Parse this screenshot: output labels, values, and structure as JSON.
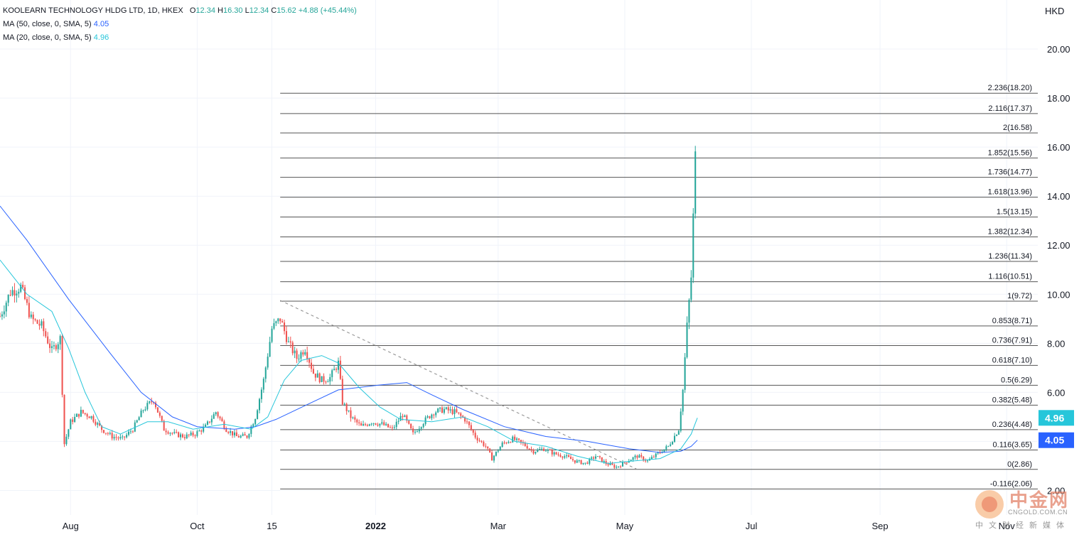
{
  "legend": {
    "symbol": "KOOLEARN TECHNOLOGY HLDG LTD, 1D, HKEX",
    "o_label": "O",
    "o_val": "12.34",
    "h_label": "H",
    "h_val": "16.30",
    "l_label": "L",
    "l_val": "12.34",
    "c_label": "C",
    "c_val": "15.62",
    "change": "+4.88 (+45.44%)",
    "ma50_label": "MA (50, close, 0, SMA, 5)",
    "ma50_val": "4.05",
    "ma20_label": "MA (20, close, 0, SMA, 5)",
    "ma20_val": "4.96"
  },
  "watermark": {
    "logo_text": "中金网",
    "sub": "CNGOLD.COM.CN",
    "cn": "中文财经新媒体"
  },
  "colors": {
    "up": "#26a69a",
    "down": "#ef5350",
    "ma50": "#2962ff",
    "ma20": "#26c6da",
    "fib": "#555555",
    "grid": "#f0f3fa"
  },
  "chart_data": {
    "type": "candlestick",
    "y_unit": "HKD",
    "ylim": [
      1.0,
      22.0
    ],
    "y_ticks": [
      "2.00",
      "4.00",
      "6.00",
      "8.00",
      "10.00",
      "12.00",
      "14.00",
      "16.00",
      "18.00",
      "20.00"
    ],
    "x_ticks": [
      {
        "label": "Aug",
        "day": 21
      },
      {
        "label": "Oct",
        "day": 82
      },
      {
        "label": "15",
        "day": 118
      },
      {
        "label": "2022",
        "day": 168,
        "bold": true
      },
      {
        "label": "Mar",
        "day": 227
      },
      {
        "label": "May",
        "day": 288
      },
      {
        "label": "Jul",
        "day": 349
      },
      {
        "label": "Sep",
        "day": 411
      },
      {
        "label": "Nov",
        "day": 472
      }
    ],
    "x_range_days": [
      -13,
      487
    ],
    "fib_levels": [
      {
        "label": "2.236(18.20)",
        "value": 18.2
      },
      {
        "label": "2.116(17.37)",
        "value": 17.37
      },
      {
        "label": "2(16.58)",
        "value": 16.58
      },
      {
        "label": "1.852(15.56)",
        "value": 15.56
      },
      {
        "label": "1.736(14.77)",
        "value": 14.77
      },
      {
        "label": "1.618(13.96)",
        "value": 13.96
      },
      {
        "label": "1.5(13.15)",
        "value": 13.15
      },
      {
        "label": "1.382(12.34)",
        "value": 12.34
      },
      {
        "label": "1.236(11.34)",
        "value": 11.34
      },
      {
        "label": "1.116(10.51)",
        "value": 10.51
      },
      {
        "label": "1(9.72)",
        "value": 9.72
      },
      {
        "label": "0.853(8.71)",
        "value": 8.71
      },
      {
        "label": "0.736(7.91)",
        "value": 7.91
      },
      {
        "label": "0.618(7.10)",
        "value": 7.1
      },
      {
        "label": "0.5(6.29)",
        "value": 6.29
      },
      {
        "label": "0.382(5.48)",
        "value": 5.48
      },
      {
        "label": "0.236(4.48)",
        "value": 4.48
      },
      {
        "label": "0.116(3.65)",
        "value": 3.65
      },
      {
        "label": "0(2.86)",
        "value": 2.86
      },
      {
        "label": "-0.116(2.06)",
        "value": 2.06
      }
    ],
    "fib_start_day": 122,
    "trendline": {
      "from": [
        122,
        9.75
      ],
      "to": [
        294,
        2.86
      ]
    },
    "closes": [
      {
        "d": -13,
        "c": 9.1
      },
      {
        "d": -8,
        "c": 10.1
      },
      {
        "d": -3,
        "c": 10.3
      },
      {
        "d": 2,
        "c": 9.0
      },
      {
        "d": 7,
        "c": 8.7
      },
      {
        "d": 12,
        "c": 7.7
      },
      {
        "d": 16,
        "c": 8.2
      },
      {
        "d": 18,
        "c": 3.9
      },
      {
        "d": 21,
        "c": 4.8
      },
      {
        "d": 26,
        "c": 5.2
      },
      {
        "d": 31,
        "c": 5.0
      },
      {
        "d": 36,
        "c": 4.5
      },
      {
        "d": 41,
        "c": 4.2
      },
      {
        "d": 46,
        "c": 4.1
      },
      {
        "d": 51,
        "c": 4.5
      },
      {
        "d": 56,
        "c": 5.3
      },
      {
        "d": 61,
        "c": 5.7
      },
      {
        "d": 66,
        "c": 4.5
      },
      {
        "d": 71,
        "c": 4.3
      },
      {
        "d": 76,
        "c": 4.2
      },
      {
        "d": 81,
        "c": 4.3
      },
      {
        "d": 86,
        "c": 4.6
      },
      {
        "d": 91,
        "c": 5.2
      },
      {
        "d": 96,
        "c": 4.5
      },
      {
        "d": 101,
        "c": 4.2
      },
      {
        "d": 106,
        "c": 4.2
      },
      {
        "d": 110,
        "c": 5.0
      },
      {
        "d": 114,
        "c": 6.5
      },
      {
        "d": 118,
        "c": 8.6
      },
      {
        "d": 122,
        "c": 9.0
      },
      {
        "d": 126,
        "c": 8.0
      },
      {
        "d": 130,
        "c": 7.4
      },
      {
        "d": 134,
        "c": 7.8
      },
      {
        "d": 138,
        "c": 6.8
      },
      {
        "d": 142,
        "c": 6.5
      },
      {
        "d": 146,
        "c": 6.6
      },
      {
        "d": 150,
        "c": 7.2
      },
      {
        "d": 152,
        "c": 5.6
      },
      {
        "d": 156,
        "c": 5.0
      },
      {
        "d": 161,
        "c": 4.6
      },
      {
        "d": 166,
        "c": 4.8
      },
      {
        "d": 171,
        "c": 4.7
      },
      {
        "d": 176,
        "c": 4.5
      },
      {
        "d": 181,
        "c": 5.1
      },
      {
        "d": 186,
        "c": 4.3
      },
      {
        "d": 191,
        "c": 4.8
      },
      {
        "d": 196,
        "c": 5.2
      },
      {
        "d": 201,
        "c": 5.3
      },
      {
        "d": 206,
        "c": 5.2
      },
      {
        "d": 211,
        "c": 4.9
      },
      {
        "d": 216,
        "c": 4.2
      },
      {
        "d": 221,
        "c": 3.8
      },
      {
        "d": 224,
        "c": 3.3
      },
      {
        "d": 229,
        "c": 3.9
      },
      {
        "d": 234,
        "c": 4.1
      },
      {
        "d": 239,
        "c": 3.9
      },
      {
        "d": 244,
        "c": 3.6
      },
      {
        "d": 249,
        "c": 3.7
      },
      {
        "d": 254,
        "c": 3.5
      },
      {
        "d": 259,
        "c": 3.4
      },
      {
        "d": 264,
        "c": 3.2
      },
      {
        "d": 269,
        "c": 3.1
      },
      {
        "d": 274,
        "c": 3.4
      },
      {
        "d": 279,
        "c": 3.1
      },
      {
        "d": 284,
        "c": 2.95
      },
      {
        "d": 289,
        "c": 3.2
      },
      {
        "d": 294,
        "c": 3.4
      },
      {
        "d": 299,
        "c": 3.2
      },
      {
        "d": 304,
        "c": 3.5
      },
      {
        "d": 309,
        "c": 3.8
      },
      {
        "d": 314,
        "c": 4.5
      },
      {
        "d": 316,
        "c": 6.1
      },
      {
        "d": 318,
        "c": 8.7
      },
      {
        "d": 320,
        "c": 10.7
      },
      {
        "d": 322,
        "c": 15.62
      }
    ],
    "ma50": [
      {
        "d": -13,
        "v": 13.6
      },
      {
        "d": 0,
        "v": 12.2
      },
      {
        "d": 20,
        "v": 9.8
      },
      {
        "d": 40,
        "v": 7.6
      },
      {
        "d": 55,
        "v": 6.0
      },
      {
        "d": 70,
        "v": 5.0
      },
      {
        "d": 82,
        "v": 4.6
      },
      {
        "d": 100,
        "v": 4.5
      },
      {
        "d": 110,
        "v": 4.6
      },
      {
        "d": 120,
        "v": 4.9
      },
      {
        "d": 135,
        "v": 5.5
      },
      {
        "d": 150,
        "v": 6.1
      },
      {
        "d": 170,
        "v": 6.3
      },
      {
        "d": 183,
        "v": 6.4
      },
      {
        "d": 195,
        "v": 5.9
      },
      {
        "d": 210,
        "v": 5.3
      },
      {
        "d": 230,
        "v": 4.6
      },
      {
        "d": 250,
        "v": 4.2
      },
      {
        "d": 270,
        "v": 4.0
      },
      {
        "d": 290,
        "v": 3.7
      },
      {
        "d": 305,
        "v": 3.55
      },
      {
        "d": 315,
        "v": 3.6
      },
      {
        "d": 320,
        "v": 3.8
      },
      {
        "d": 323,
        "v": 4.05
      }
    ],
    "ma20": [
      {
        "d": -13,
        "v": 11.4
      },
      {
        "d": 0,
        "v": 10.0
      },
      {
        "d": 12,
        "v": 9.3
      },
      {
        "d": 20,
        "v": 7.8
      },
      {
        "d": 28,
        "v": 6.0
      },
      {
        "d": 36,
        "v": 4.6
      },
      {
        "d": 45,
        "v": 4.3
      },
      {
        "d": 58,
        "v": 4.8
      },
      {
        "d": 68,
        "v": 4.8
      },
      {
        "d": 80,
        "v": 4.5
      },
      {
        "d": 95,
        "v": 4.7
      },
      {
        "d": 108,
        "v": 4.5
      },
      {
        "d": 116,
        "v": 5.0
      },
      {
        "d": 124,
        "v": 6.5
      },
      {
        "d": 132,
        "v": 7.3
      },
      {
        "d": 142,
        "v": 7.5
      },
      {
        "d": 150,
        "v": 7.2
      },
      {
        "d": 160,
        "v": 6.2
      },
      {
        "d": 170,
        "v": 5.4
      },
      {
        "d": 180,
        "v": 4.9
      },
      {
        "d": 195,
        "v": 4.8
      },
      {
        "d": 210,
        "v": 5.0
      },
      {
        "d": 222,
        "v": 4.6
      },
      {
        "d": 235,
        "v": 4.0
      },
      {
        "d": 250,
        "v": 3.8
      },
      {
        "d": 265,
        "v": 3.4
      },
      {
        "d": 280,
        "v": 3.1
      },
      {
        "d": 292,
        "v": 3.2
      },
      {
        "d": 305,
        "v": 3.3
      },
      {
        "d": 315,
        "v": 3.7
      },
      {
        "d": 320,
        "v": 4.3
      },
      {
        "d": 323,
        "v": 4.96
      }
    ]
  }
}
